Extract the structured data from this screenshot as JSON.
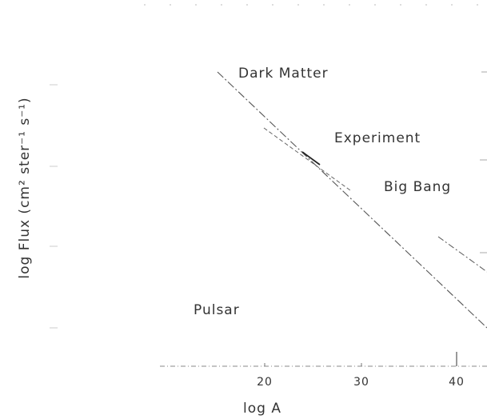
{
  "chart_data": {
    "type": "line",
    "title": "",
    "xlabel": "log A",
    "ylabel": "log Flux  (cm² ster⁻¹ s⁻¹)",
    "x_ticks": [
      "20",
      "30",
      "40"
    ],
    "xlim": [
      6,
      43
    ],
    "series": [
      {
        "name": "Dark Matter",
        "x": [
          16.1,
          43
        ],
        "y": [
          0,
          0
        ]
      },
      {
        "name": "Experiment",
        "x": [
          21,
          28
        ],
        "y": [
          0,
          0
        ]
      },
      {
        "name": "Big Bang",
        "x": [
          38.3,
          43
        ],
        "y": [
          0,
          0
        ]
      }
    ],
    "annotations": [
      "Pulsar"
    ],
    "grid": false,
    "legend": "none"
  },
  "colors": {
    "line": "#555555",
    "text": "#333333"
  }
}
